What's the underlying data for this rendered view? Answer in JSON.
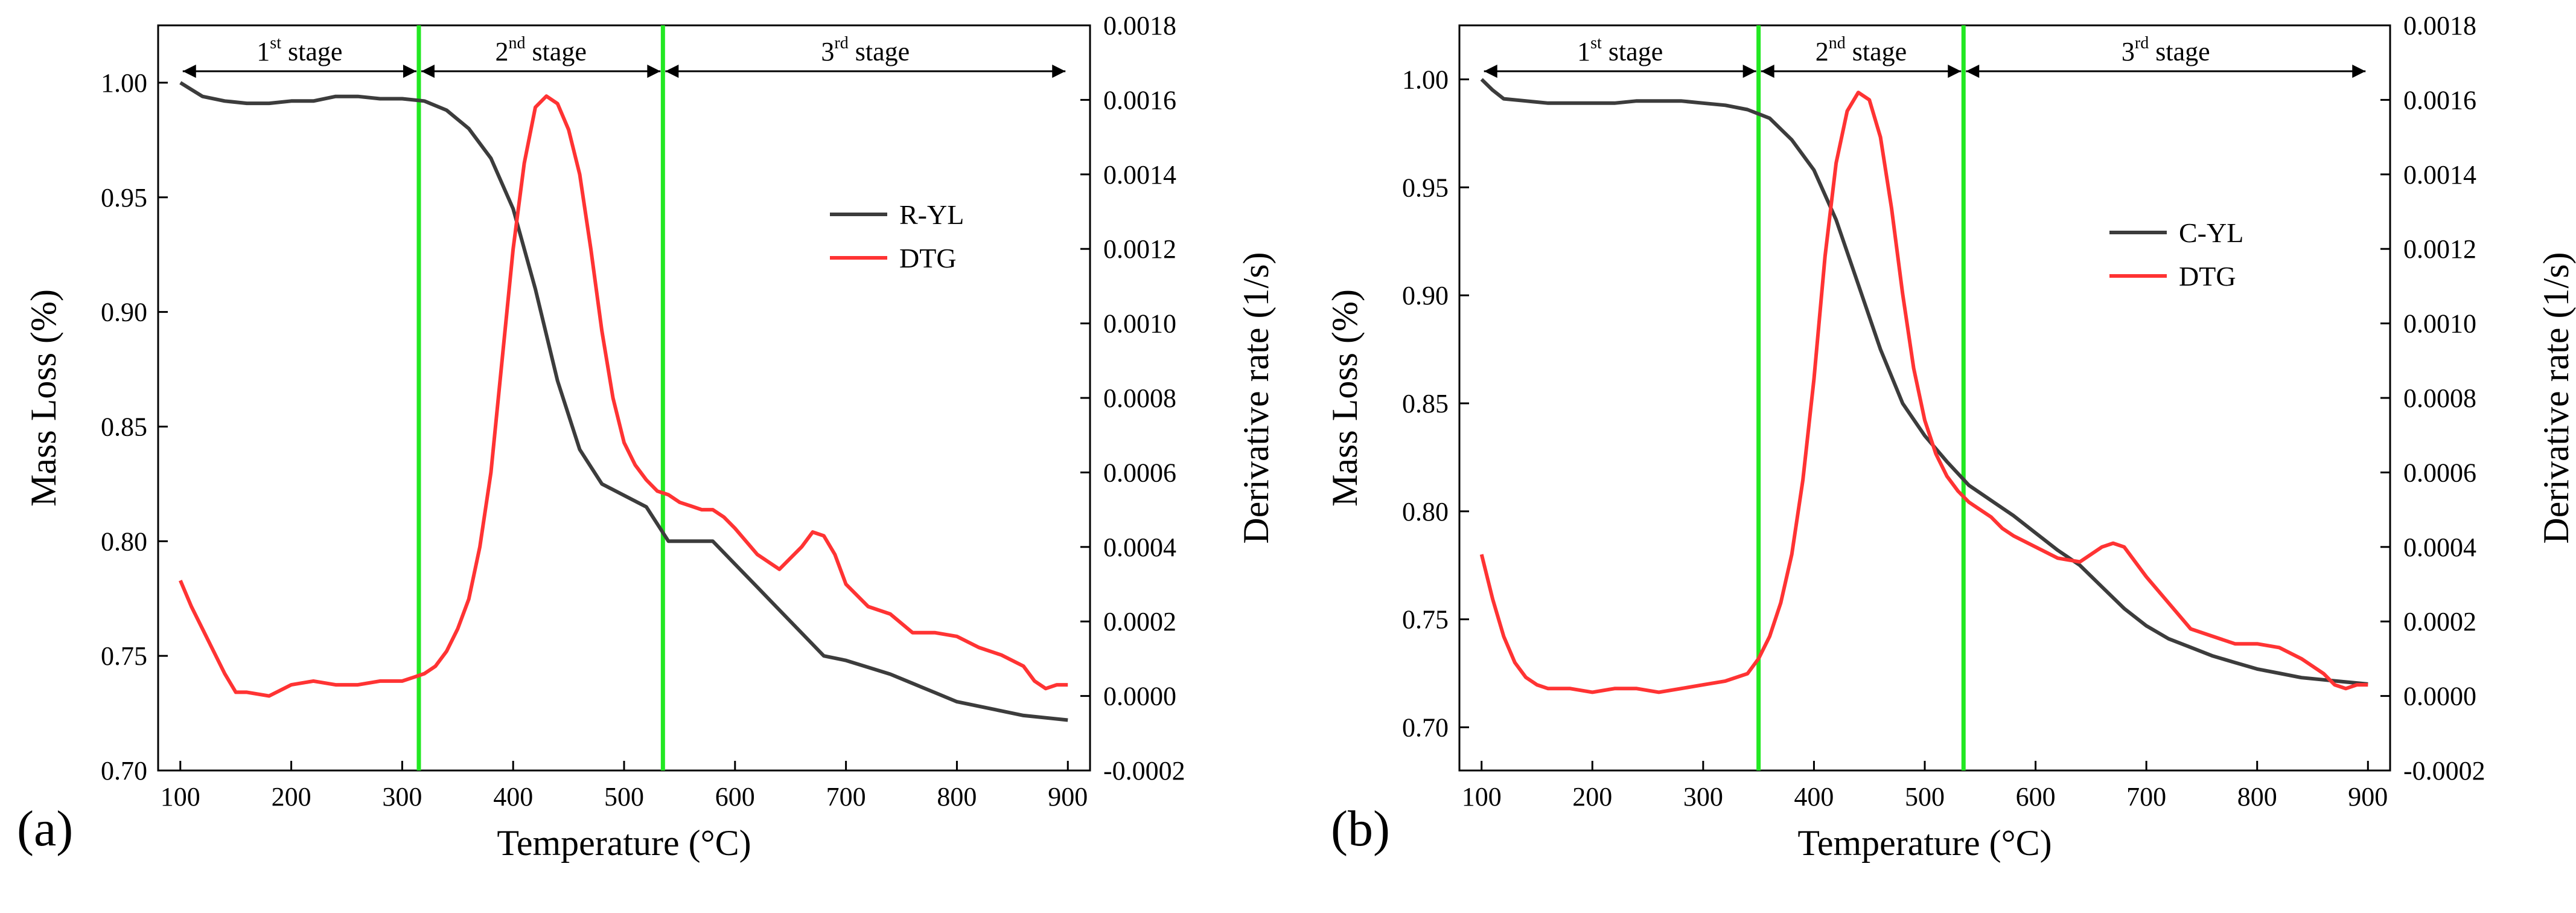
{
  "chart_data": [
    {
      "type": "line",
      "panel_label": "(a)",
      "xlabel": "Temperature (°C)",
      "ylabel": "Mass Loss (%)",
      "y2label": "Derivative rate (1/s)",
      "xlim": [
        80,
        920
      ],
      "ylim": [
        0.7,
        1.025
      ],
      "y2lim": [
        -0.0002,
        0.0018
      ],
      "xticks": [
        100,
        200,
        300,
        400,
        500,
        600,
        700,
        800,
        900
      ],
      "yticks": [
        0.7,
        0.75,
        0.8,
        0.85,
        0.9,
        0.95,
        1.0
      ],
      "ytick_labels": [
        "0.70",
        "0.75",
        "0.80",
        "0.85",
        "0.90",
        "0.95",
        "1.00"
      ],
      "y2ticks": [
        -0.0002,
        0.0,
        0.0002,
        0.0004,
        0.0006,
        0.0008,
        0.001,
        0.0012,
        0.0014,
        0.0016,
        0.0018
      ],
      "y2tick_labels": [
        "-0.0002",
        "0.0000",
        "0.0002",
        "0.0004",
        "0.0006",
        "0.0008",
        "0.0010",
        "0.0012",
        "0.0014",
        "0.0016",
        "0.0018"
      ],
      "stage_boundaries": [
        315,
        535
      ],
      "stages": [
        {
          "base": "1",
          "sup": "st",
          "text": " stage",
          "range": [
            100,
            315
          ]
        },
        {
          "base": "2",
          "sup": "nd",
          "text": " stage",
          "range": [
            315,
            535
          ]
        },
        {
          "base": "3",
          "sup": "rd",
          "text": " stage",
          "range": [
            535,
            900
          ]
        }
      ],
      "legend_position": "center-right",
      "series": [
        {
          "name": "R-YL",
          "axis": "left",
          "color": "#3c3c3c",
          "x": [
            100,
            110,
            120,
            140,
            160,
            180,
            200,
            220,
            240,
            260,
            280,
            300,
            320,
            340,
            360,
            380,
            400,
            420,
            440,
            460,
            480,
            500,
            520,
            540,
            560,
            580,
            600,
            620,
            640,
            660,
            680,
            700,
            720,
            740,
            760,
            780,
            800,
            820,
            840,
            860,
            880,
            900
          ],
          "y": [
            1.0,
            0.997,
            0.994,
            0.992,
            0.991,
            0.991,
            0.992,
            0.992,
            0.994,
            0.994,
            0.993,
            0.993,
            0.992,
            0.988,
            0.98,
            0.967,
            0.945,
            0.91,
            0.87,
            0.84,
            0.825,
            0.82,
            0.815,
            0.8,
            0.8,
            0.8,
            0.79,
            0.78,
            0.77,
            0.76,
            0.75,
            0.748,
            0.745,
            0.742,
            0.738,
            0.734,
            0.73,
            0.728,
            0.726,
            0.724,
            0.723,
            0.722
          ]
        },
        {
          "name": "DTG",
          "axis": "right",
          "color": "#ff3333",
          "x": [
            100,
            110,
            120,
            130,
            140,
            150,
            160,
            180,
            200,
            220,
            240,
            260,
            280,
            300,
            310,
            320,
            330,
            340,
            350,
            360,
            370,
            380,
            390,
            400,
            410,
            420,
            430,
            440,
            450,
            460,
            470,
            480,
            490,
            500,
            510,
            520,
            530,
            540,
            550,
            560,
            570,
            580,
            590,
            600,
            620,
            640,
            660,
            670,
            680,
            690,
            700,
            720,
            740,
            760,
            780,
            800,
            820,
            840,
            860,
            870,
            880,
            890,
            900
          ],
          "y": [
            0.00031,
            0.00024,
            0.00018,
            0.00012,
            6e-05,
            1e-05,
            1e-05,
            0.0,
            3e-05,
            4e-05,
            3e-05,
            3e-05,
            4e-05,
            4e-05,
            5e-05,
            6e-05,
            8e-05,
            0.00012,
            0.00018,
            0.00026,
            0.0004,
            0.0006,
            0.0009,
            0.0012,
            0.00143,
            0.00158,
            0.00161,
            0.00159,
            0.00152,
            0.0014,
            0.0012,
            0.00098,
            0.0008,
            0.00068,
            0.00062,
            0.00058,
            0.00055,
            0.00054,
            0.00052,
            0.00051,
            0.0005,
            0.0005,
            0.00048,
            0.00045,
            0.00038,
            0.00034,
            0.0004,
            0.00044,
            0.00043,
            0.00038,
            0.0003,
            0.00024,
            0.00022,
            0.00017,
            0.00017,
            0.00016,
            0.00013,
            0.00011,
            8e-05,
            4e-05,
            2e-05,
            3e-05,
            3e-05
          ]
        }
      ]
    },
    {
      "type": "line",
      "panel_label": "(b)",
      "xlabel": "Temperature (°C)",
      "ylabel": "Mass Loss (%)",
      "y2label": "Derivative rate (1/s)",
      "xlim": [
        80,
        920
      ],
      "ylim": [
        0.68,
        1.025
      ],
      "y2lim": [
        -0.0002,
        0.0018
      ],
      "xticks": [
        100,
        200,
        300,
        400,
        500,
        600,
        700,
        800,
        900
      ],
      "yticks": [
        0.7,
        0.75,
        0.8,
        0.85,
        0.9,
        0.95,
        1.0
      ],
      "ytick_labels": [
        "0.70",
        "0.75",
        "0.80",
        "0.85",
        "0.90",
        "0.95",
        "1.00"
      ],
      "y2ticks": [
        -0.0002,
        0.0,
        0.0002,
        0.0004,
        0.0006,
        0.0008,
        0.001,
        0.0012,
        0.0014,
        0.0016,
        0.0018
      ],
      "y2tick_labels": [
        "-0.0002",
        "0.0000",
        "0.0002",
        "0.0004",
        "0.0006",
        "0.0008",
        "0.0010",
        "0.0012",
        "0.0014",
        "0.0016",
        "0.0018"
      ],
      "stage_boundaries": [
        350,
        535
      ],
      "stages": [
        {
          "base": "1",
          "sup": "st",
          "text": " stage",
          "range": [
            100,
            350
          ]
        },
        {
          "base": "2",
          "sup": "nd",
          "text": " stage",
          "range": [
            350,
            535
          ]
        },
        {
          "base": "3",
          "sup": "rd",
          "text": " stage",
          "range": [
            535,
            900
          ]
        }
      ],
      "legend_position": "center-right",
      "series": [
        {
          "name": "C-YL",
          "axis": "left",
          "color": "#3c3c3c",
          "x": [
            100,
            110,
            120,
            140,
            160,
            180,
            200,
            220,
            240,
            260,
            280,
            300,
            320,
            340,
            360,
            380,
            400,
            420,
            440,
            460,
            480,
            500,
            520,
            540,
            560,
            580,
            600,
            620,
            640,
            660,
            680,
            700,
            720,
            740,
            760,
            780,
            800,
            820,
            840,
            860,
            880,
            900
          ],
          "y": [
            1.0,
            0.995,
            0.991,
            0.99,
            0.989,
            0.989,
            0.989,
            0.989,
            0.99,
            0.99,
            0.99,
            0.989,
            0.988,
            0.986,
            0.982,
            0.972,
            0.958,
            0.935,
            0.905,
            0.875,
            0.85,
            0.835,
            0.823,
            0.812,
            0.805,
            0.798,
            0.79,
            0.782,
            0.775,
            0.765,
            0.755,
            0.747,
            0.741,
            0.737,
            0.733,
            0.73,
            0.727,
            0.725,
            0.723,
            0.722,
            0.721,
            0.72
          ]
        },
        {
          "name": "DTG",
          "axis": "right",
          "color": "#ff3333",
          "x": [
            100,
            110,
            120,
            130,
            140,
            150,
            160,
            180,
            200,
            220,
            240,
            260,
            280,
            300,
            320,
            340,
            350,
            360,
            370,
            380,
            390,
            400,
            410,
            420,
            430,
            440,
            450,
            460,
            470,
            480,
            490,
            500,
            510,
            520,
            530,
            540,
            550,
            560,
            570,
            580,
            600,
            620,
            640,
            660,
            670,
            680,
            700,
            720,
            740,
            760,
            780,
            800,
            820,
            840,
            860,
            870,
            880,
            890,
            900
          ],
          "y": [
            0.00038,
            0.00026,
            0.00016,
            9e-05,
            5e-05,
            3e-05,
            2e-05,
            2e-05,
            1e-05,
            2e-05,
            2e-05,
            1e-05,
            2e-05,
            3e-05,
            4e-05,
            6e-05,
            0.0001,
            0.00016,
            0.00025,
            0.00038,
            0.00058,
            0.00085,
            0.00118,
            0.00143,
            0.00157,
            0.00162,
            0.0016,
            0.0015,
            0.00131,
            0.00108,
            0.00088,
            0.00074,
            0.00065,
            0.00059,
            0.00055,
            0.00052,
            0.0005,
            0.00048,
            0.00045,
            0.00043,
            0.0004,
            0.00037,
            0.00036,
            0.0004,
            0.00041,
            0.0004,
            0.00032,
            0.00025,
            0.00018,
            0.00016,
            0.00014,
            0.00014,
            0.00013,
            0.0001,
            6e-05,
            3e-05,
            2e-05,
            3e-05,
            3e-05
          ]
        }
      ]
    }
  ]
}
